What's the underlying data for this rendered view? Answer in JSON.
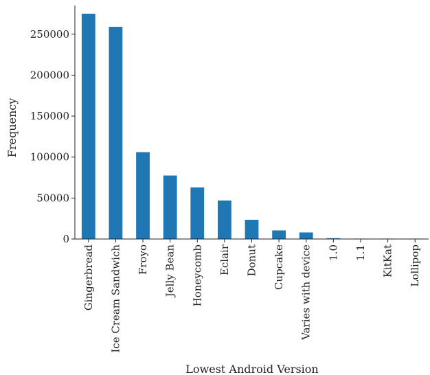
{
  "chart_data": {
    "type": "bar",
    "xlabel": "Lowest Android Version",
    "ylabel": "Frequency",
    "categories": [
      "Gingerbread",
      "Ice Cream Sandwich",
      "Froyo",
      "Jelly Bean",
      "Honeycomb",
      "Eclair",
      "Donut",
      "Cupcake",
      "Varies with device",
      "1.0",
      "1.1",
      "KitKat",
      "Lollipop"
    ],
    "values": [
      275000,
      259000,
      106000,
      77500,
      63000,
      47000,
      23500,
      10500,
      8000,
      1000,
      200,
      100,
      50
    ],
    "ylim": [
      0,
      285000
    ],
    "yticks": [
      0,
      50000,
      100000,
      150000,
      200000,
      250000
    ],
    "ytick_labels": [
      "0",
      "50000",
      "100000",
      "150000",
      "200000",
      "250000"
    ],
    "bar_color": "#1f77b4",
    "grid": false,
    "legend": "none"
  }
}
